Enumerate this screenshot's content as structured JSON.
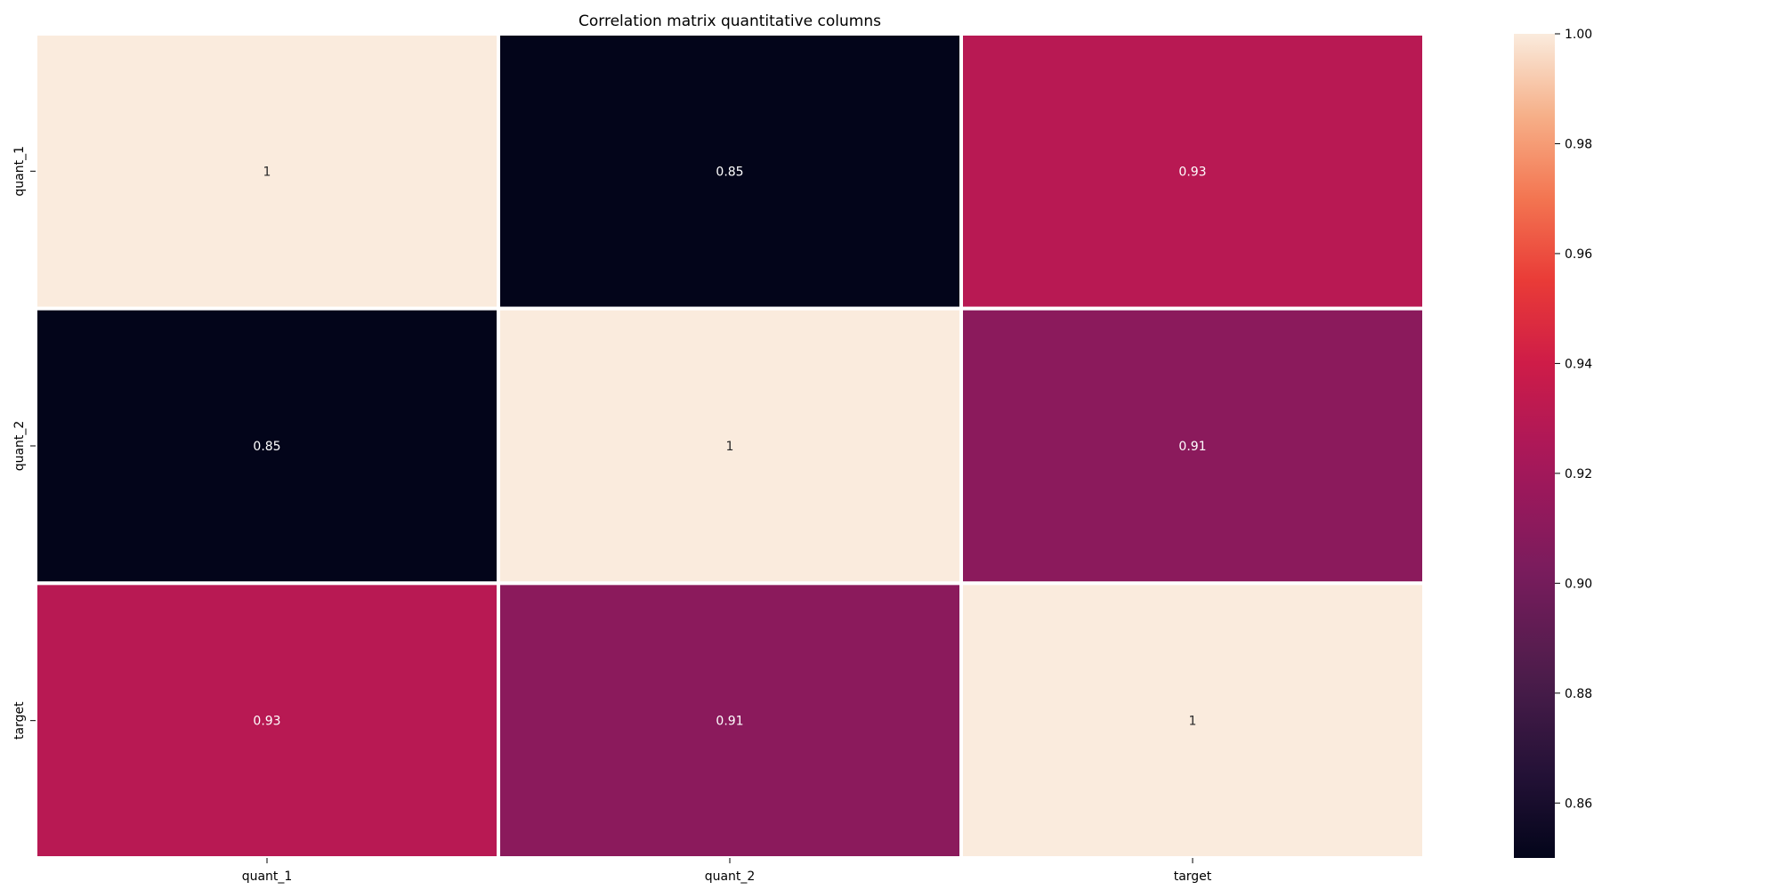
{
  "chart_data": {
    "type": "heatmap",
    "title": "Correlation matrix quantitative columns",
    "xlabel": "",
    "ylabel": "",
    "x_categories": [
      "quant_1",
      "quant_2",
      "target"
    ],
    "y_categories": [
      "quant_1",
      "quant_2",
      "target"
    ],
    "values": [
      [
        1,
        0.85,
        0.93
      ],
      [
        0.85,
        1,
        0.91
      ],
      [
        0.93,
        0.91,
        1
      ]
    ],
    "annotations": [
      [
        "1",
        "0.85",
        "0.93"
      ],
      [
        "0.85",
        "1",
        "0.91"
      ],
      [
        "0.93",
        "0.91",
        "1"
      ]
    ],
    "colorbar": {
      "range": [
        0.85,
        1.0
      ],
      "ticks": [
        0.86,
        0.88,
        0.9,
        0.92,
        0.94,
        0.96,
        0.98,
        1.0
      ],
      "tick_labels": [
        "0.86",
        "0.88",
        "0.90",
        "0.92",
        "0.94",
        "0.96",
        "0.98",
        "1.00"
      ],
      "colormap": "rocket",
      "placement": "right"
    },
    "grid": false,
    "cell_separator_color": "#ffffff"
  }
}
